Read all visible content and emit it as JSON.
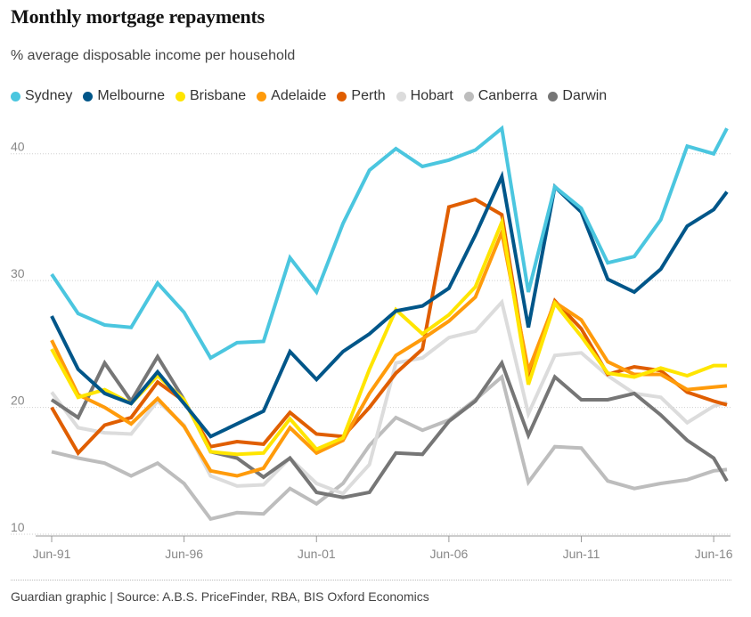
{
  "title": "Monthly mortgage repayments",
  "subtitle": "% average disposable income per household",
  "source": "Guardian graphic | Source: A.B.S. PriceFinder, RBA, BIS Oxford Economics",
  "chart_data": {
    "type": "line",
    "title": "Monthly mortgage repayments",
    "subtitle": "% average disposable income per household",
    "xlabel": "",
    "ylabel": "",
    "ylim": [
      10,
      43
    ],
    "grid": true,
    "legend_position": "top",
    "x": [
      1991.5,
      1992.5,
      1993.5,
      1994.5,
      1995.5,
      1996.5,
      1997.5,
      1998.5,
      1999.5,
      2000.5,
      2001.5,
      2002.5,
      2003.5,
      2004.5,
      2005.5,
      2006.5,
      2007.5,
      2008.5,
      2009.5,
      2010.5,
      2011.5,
      2012.5,
      2013.5,
      2014.5,
      2015.5,
      2016.5,
      2017.0
    ],
    "x_ticks": [
      {
        "value": 1991.5,
        "label": "Jun-91"
      },
      {
        "value": 1996.5,
        "label": "Jun-96"
      },
      {
        "value": 2001.5,
        "label": "Jun-01"
      },
      {
        "value": 2006.5,
        "label": "Jun-06"
      },
      {
        "value": 2011.5,
        "label": "Jun-11"
      },
      {
        "value": 2016.5,
        "label": "Jun-16"
      }
    ],
    "y_ticks": [
      10,
      20,
      30,
      40
    ],
    "series": [
      {
        "name": "Canberra",
        "color": "#bdbdbd",
        "values": [
          16.5,
          16.0,
          15.6,
          14.6,
          15.6,
          14.0,
          11.2,
          11.7,
          11.6,
          13.6,
          12.4,
          14.0,
          17.0,
          19.2,
          18.2,
          19.0,
          20.6,
          22.4,
          14.1,
          16.9,
          16.8,
          14.2,
          13.6,
          14.0,
          14.3,
          15.0,
          15.1
        ]
      },
      {
        "name": "Hobart",
        "color": "#dcdcdc",
        "values": [
          21.2,
          18.4,
          18.0,
          17.9,
          20.5,
          18.6,
          14.6,
          13.8,
          13.9,
          16.0,
          14.0,
          13.2,
          15.5,
          23.5,
          23.9,
          25.5,
          26.0,
          28.3,
          19.5,
          24.1,
          24.3,
          22.5,
          21.1,
          20.8,
          18.8,
          20.1,
          20.4
        ]
      },
      {
        "name": "Darwin",
        "color": "#767676",
        "values": [
          20.6,
          19.2,
          23.5,
          20.5,
          24.0,
          20.6,
          16.5,
          16.0,
          14.5,
          16.0,
          13.3,
          12.9,
          13.3,
          16.4,
          16.3,
          18.9,
          20.5,
          23.5,
          17.8,
          22.4,
          20.6,
          20.6,
          21.1,
          19.4,
          17.4,
          16.0,
          14.2
        ]
      },
      {
        "name": "Perth",
        "color": "#e05e00",
        "values": [
          20.0,
          16.4,
          18.6,
          19.2,
          22.0,
          20.5,
          16.9,
          17.3,
          17.1,
          19.6,
          17.9,
          17.7,
          20.0,
          22.7,
          24.6,
          35.8,
          36.4,
          35.2,
          22.3,
          28.4,
          26.2,
          22.6,
          23.2,
          22.9,
          21.2,
          20.5,
          20.2
        ]
      },
      {
        "name": "Adelaide",
        "color": "#ff9b0b",
        "values": [
          25.3,
          21.0,
          20.0,
          18.7,
          20.7,
          18.5,
          15.0,
          14.6,
          15.2,
          18.4,
          16.4,
          17.4,
          21.1,
          24.1,
          25.4,
          26.8,
          28.7,
          33.8,
          22.9,
          28.3,
          26.9,
          23.6,
          22.6,
          22.6,
          21.4,
          21.6,
          21.7
        ]
      },
      {
        "name": "Brisbane",
        "color": "#ffe500",
        "values": [
          24.6,
          20.8,
          21.4,
          20.3,
          22.5,
          20.6,
          16.5,
          16.3,
          16.4,
          19.1,
          16.7,
          17.6,
          23.0,
          27.7,
          25.8,
          27.3,
          29.5,
          34.6,
          21.8,
          28.2,
          25.6,
          22.7,
          22.4,
          23.1,
          22.5,
          23.3,
          23.3
        ]
      },
      {
        "name": "Melbourne",
        "color": "#005689",
        "values": [
          27.2,
          23.0,
          21.1,
          20.3,
          22.8,
          20.3,
          17.7,
          18.7,
          19.7,
          24.4,
          22.2,
          24.4,
          25.8,
          27.6,
          28.0,
          29.4,
          33.6,
          38.2,
          26.3,
          37.4,
          35.4,
          30.1,
          29.1,
          30.9,
          34.3,
          35.6,
          37.0
        ]
      },
      {
        "name": "Sydney",
        "color": "#4bc6df",
        "values": [
          30.5,
          27.4,
          26.5,
          26.3,
          29.8,
          27.5,
          23.9,
          25.1,
          25.2,
          31.8,
          29.1,
          34.5,
          38.7,
          40.4,
          39.0,
          39.5,
          40.3,
          42.0,
          29.1,
          37.4,
          35.7,
          31.4,
          31.9,
          34.8,
          40.6,
          40.0,
          42.0
        ]
      }
    ]
  },
  "legend": [
    {
      "label": "Sydney",
      "color": "#4bc6df"
    },
    {
      "label": "Melbourne",
      "color": "#005689"
    },
    {
      "label": "Brisbane",
      "color": "#ffe500"
    },
    {
      "label": "Adelaide",
      "color": "#ff9b0b"
    },
    {
      "label": "Perth",
      "color": "#e05e00"
    },
    {
      "label": "Hobart",
      "color": "#dcdcdc"
    },
    {
      "label": "Canberra",
      "color": "#bdbdbd"
    },
    {
      "label": "Darwin",
      "color": "#767676"
    }
  ]
}
